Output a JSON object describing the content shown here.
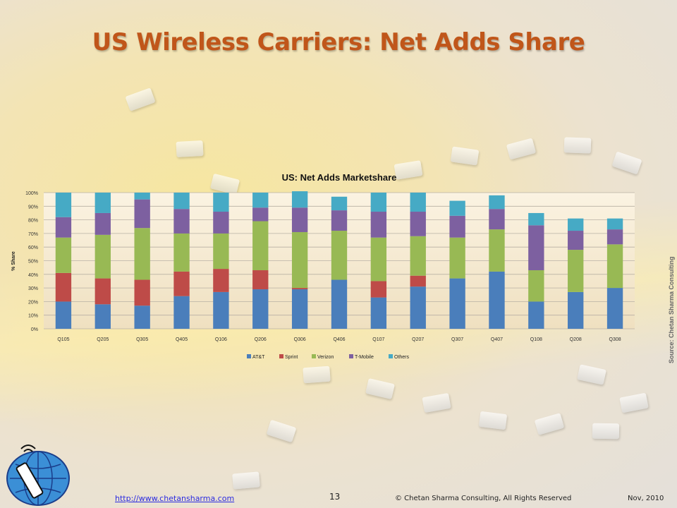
{
  "slide": {
    "title": "US Wireless Carriers: Net Adds Share",
    "source": "Source: Chetan Sharma Consulting",
    "footer": {
      "link": "http://www.chetansharma.com",
      "page": "13",
      "copyright": "© Chetan Sharma Consulting, All Rights Reserved",
      "date": "Nov, 2010"
    },
    "logo_icon": "satellite-globe-logo-icon"
  },
  "chart_data": {
    "type": "bar",
    "stacked": true,
    "title": "US: Net Adds Marketshare",
    "ylabel": "% Share",
    "xlabel": "",
    "ylim": [
      0,
      100
    ],
    "yticks": [
      "0%",
      "10%",
      "20%",
      "30%",
      "40%",
      "50%",
      "60%",
      "70%",
      "80%",
      "90%",
      "100%"
    ],
    "grid": true,
    "legend_position": "bottom",
    "categories": [
      "Q105",
      "Q205",
      "Q305",
      "Q405",
      "Q106",
      "Q206",
      "Q306",
      "Q406",
      "Q107",
      "Q207",
      "Q307",
      "Q407",
      "Q108",
      "Q208",
      "Q308"
    ],
    "series": [
      {
        "name": "AT&T",
        "color": "#4a7ebb",
        "values": [
          20,
          18,
          17,
          24,
          27,
          29,
          29,
          36,
          23,
          31,
          37,
          42,
          20,
          27,
          30
        ]
      },
      {
        "name": "Sprint",
        "color": "#be4b48",
        "values": [
          21,
          19,
          19,
          18,
          17,
          14,
          1,
          0,
          12,
          8,
          0,
          0,
          0,
          0,
          0
        ]
      },
      {
        "name": "Verizon",
        "color": "#98b954",
        "values": [
          26,
          32,
          38,
          28,
          26,
          36,
          41,
          36,
          32,
          29,
          30,
          31,
          23,
          31,
          32
        ]
      },
      {
        "name": "T-Mobile",
        "color": "#7d60a0",
        "values": [
          15,
          16,
          21,
          18,
          16,
          10,
          18,
          15,
          19,
          18,
          16,
          15,
          33,
          14,
          11
        ]
      },
      {
        "name": "Others",
        "color": "#46aac5",
        "values": [
          18,
          15,
          5,
          12,
          14,
          11,
          12,
          10,
          14,
          14,
          11,
          10,
          9,
          9,
          8
        ]
      }
    ]
  }
}
